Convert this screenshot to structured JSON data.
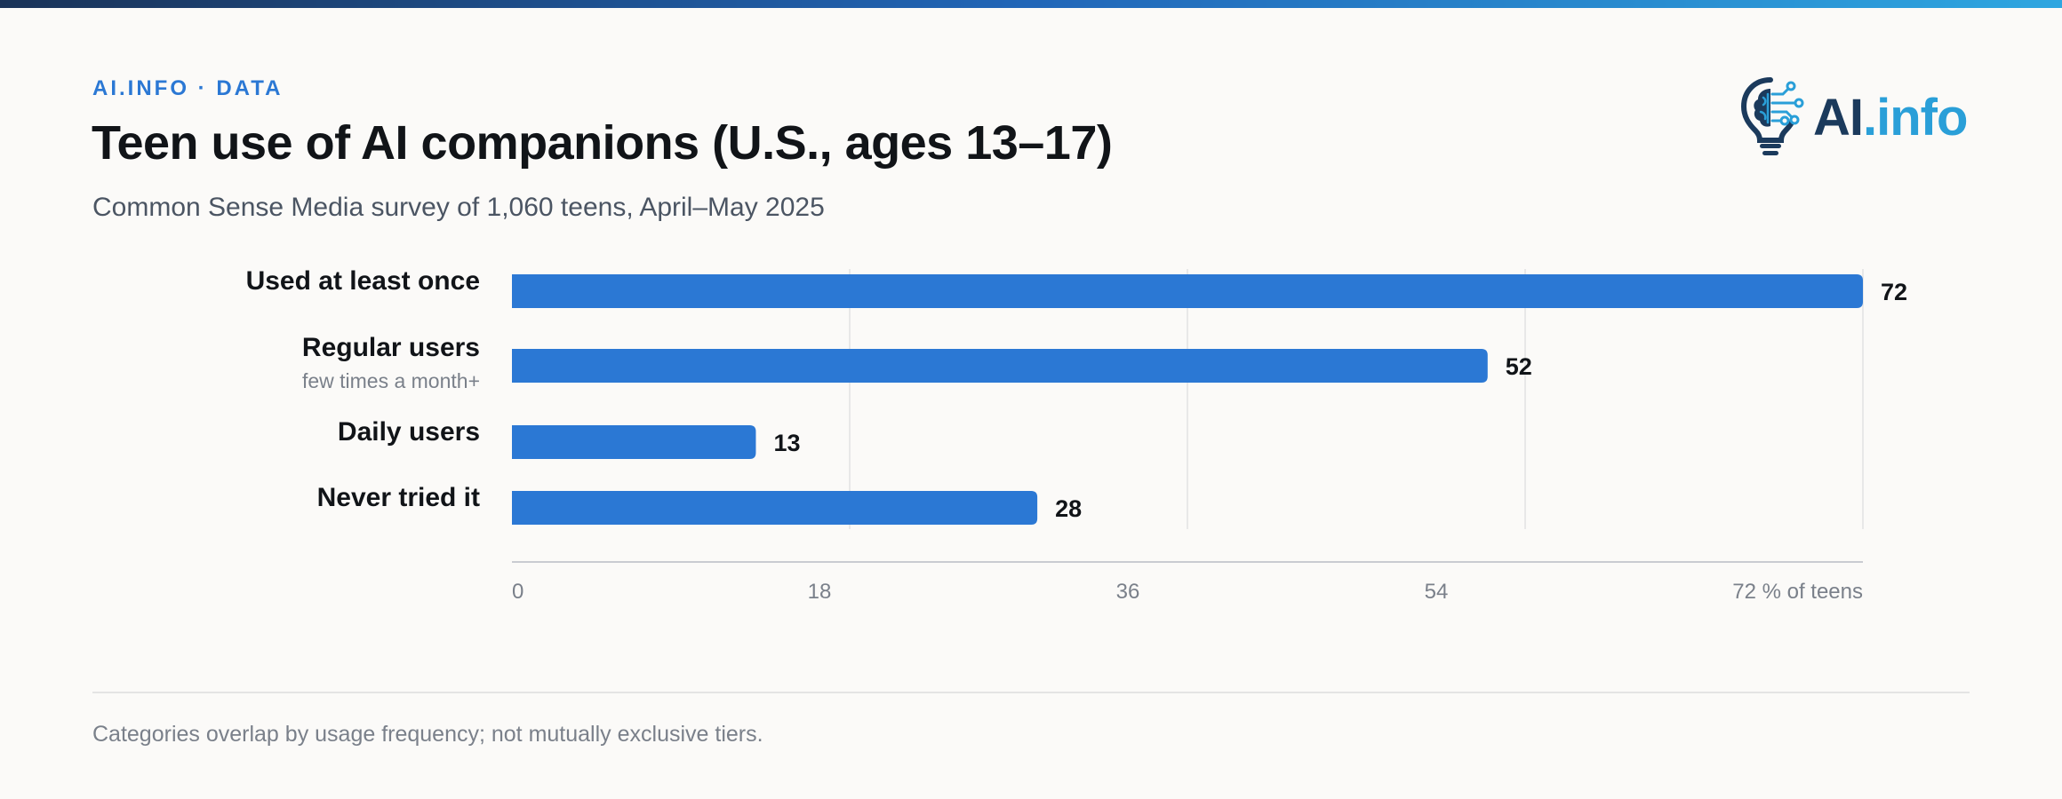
{
  "header": {
    "kicker": "AI.INFO · DATA",
    "title": "Teen use of AI companions (U.S., ages 13–17)",
    "subtitle": "Common Sense Media survey of 1,060 teens, April–May 2025"
  },
  "logo": {
    "icon": "lightbulb-brain-icon",
    "text_ai": "AI",
    "text_info": ".info"
  },
  "footnote": "Categories overlap by usage frequency; not mutually exclusive tiers.",
  "colors": {
    "bar": "#2b78d4",
    "accent": "#2b78d4",
    "logo_dark": "#1b3a5c",
    "logo_light": "#2a9fd8"
  },
  "chart_data": {
    "type": "bar",
    "orientation": "horizontal",
    "categories": [
      "Used at least once",
      "Regular users",
      "Daily users",
      "Never tried it"
    ],
    "sublabels": [
      "",
      "few times a month+",
      "",
      ""
    ],
    "values": [
      72,
      52,
      13,
      28
    ],
    "data_labels": [
      "72",
      "52",
      "13",
      "28"
    ],
    "xticks": [
      0,
      18,
      36,
      54,
      72
    ],
    "xtick_labels": [
      "0",
      "18",
      "36",
      "54",
      "72 % of teens"
    ],
    "xlim": [
      0,
      72
    ],
    "grid": true
  }
}
